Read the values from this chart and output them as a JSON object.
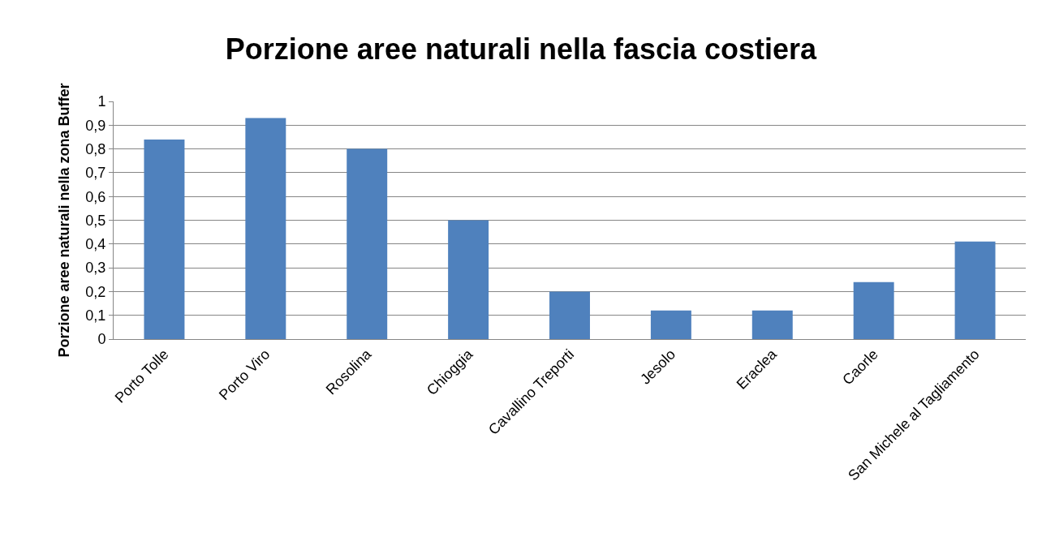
{
  "chart_data": {
    "type": "bar",
    "title": "Porzione aree naturali nella fascia costiera",
    "ylabel": "Porzione aree naturali nella zona Buffer",
    "categories": [
      "Porto Tolle",
      "Porto Viro",
      "Rosolina",
      "Chioggia",
      "Cavallino Treporti",
      "Jesolo",
      "Eraclea",
      "Caorle",
      "San Michele al Tagliamento"
    ],
    "values": [
      0.84,
      0.93,
      0.8,
      0.5,
      0.2,
      0.12,
      0.12,
      0.24,
      0.41
    ],
    "color": "#4f81bd",
    "ylim": [
      0,
      1
    ],
    "yticks": [
      0,
      {
        "value": 0.1,
        "label": "0,1"
      },
      {
        "value": 0.2,
        "label": "0,2"
      },
      {
        "value": 0.3,
        "label": "0,3"
      },
      {
        "value": 0.4,
        "label": "0,4"
      },
      {
        "value": 0.5,
        "label": "0,5"
      },
      {
        "value": 0.6,
        "label": "0,6"
      },
      {
        "value": 0.7,
        "label": "0,7"
      },
      {
        "value": 0.8,
        "label": "0,8"
      },
      {
        "value": 0.9,
        "label": "0,9"
      },
      1
    ],
    "grid": "y"
  }
}
